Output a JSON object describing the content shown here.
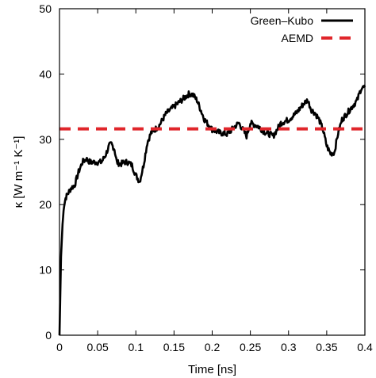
{
  "chart_data": {
    "type": "line",
    "xlabel": "Time [ns]",
    "ylabel": "κ [W m⁻¹ K⁻¹]",
    "xlim": [
      0,
      0.4
    ],
    "ylim": [
      0,
      50
    ],
    "xticks": [
      "0",
      "0.05",
      "0.1",
      "0.15",
      "0.2",
      "0.25",
      "0.3",
      "0.35",
      "0.4"
    ],
    "yticks": [
      "0",
      "10",
      "20",
      "30",
      "40",
      "50"
    ],
    "grid": false,
    "legend_position": "top-right",
    "series": [
      {
        "name": "Green–Kubo",
        "style": "solid",
        "color": "#000000",
        "x": [
          0,
          0.002,
          0.004,
          0.006,
          0.008,
          0.01,
          0.015,
          0.02,
          0.025,
          0.03,
          0.035,
          0.04,
          0.045,
          0.05,
          0.055,
          0.06,
          0.065,
          0.068,
          0.072,
          0.075,
          0.08,
          0.085,
          0.09,
          0.095,
          0.1,
          0.105,
          0.11,
          0.115,
          0.12,
          0.13,
          0.14,
          0.15,
          0.16,
          0.17,
          0.175,
          0.18,
          0.19,
          0.2,
          0.21,
          0.22,
          0.23,
          0.235,
          0.24,
          0.245,
          0.25,
          0.26,
          0.27,
          0.275,
          0.28,
          0.285,
          0.29,
          0.3,
          0.31,
          0.32,
          0.325,
          0.33,
          0.335,
          0.34,
          0.345,
          0.35,
          0.355,
          0.36,
          0.365,
          0.37,
          0.38,
          0.39,
          0.395,
          0.4
        ],
        "y": [
          0,
          12,
          17,
          20,
          21,
          21.5,
          22.5,
          23,
          25,
          26.5,
          27,
          26.5,
          26.5,
          26.5,
          26.5,
          27.5,
          29,
          29.3,
          28.5,
          26.5,
          26.2,
          26.5,
          26.5,
          26,
          24.5,
          23.5,
          26,
          29.5,
          31,
          32,
          34,
          35,
          36,
          37,
          36.8,
          36,
          33,
          31.5,
          31,
          30.8,
          32,
          32.5,
          31.5,
          30.5,
          32.5,
          32,
          31,
          30.8,
          30.5,
          31.5,
          32.5,
          33,
          34,
          35.5,
          36,
          34.5,
          34,
          33,
          31.5,
          29,
          27.8,
          28,
          31,
          33,
          34.5,
          36,
          37.8,
          38
        ]
      },
      {
        "name": "AEMD",
        "style": "dashed",
        "color": "#e0262b",
        "x": [
          0,
          0.4
        ],
        "y": [
          31.6,
          31.6
        ]
      }
    ]
  }
}
